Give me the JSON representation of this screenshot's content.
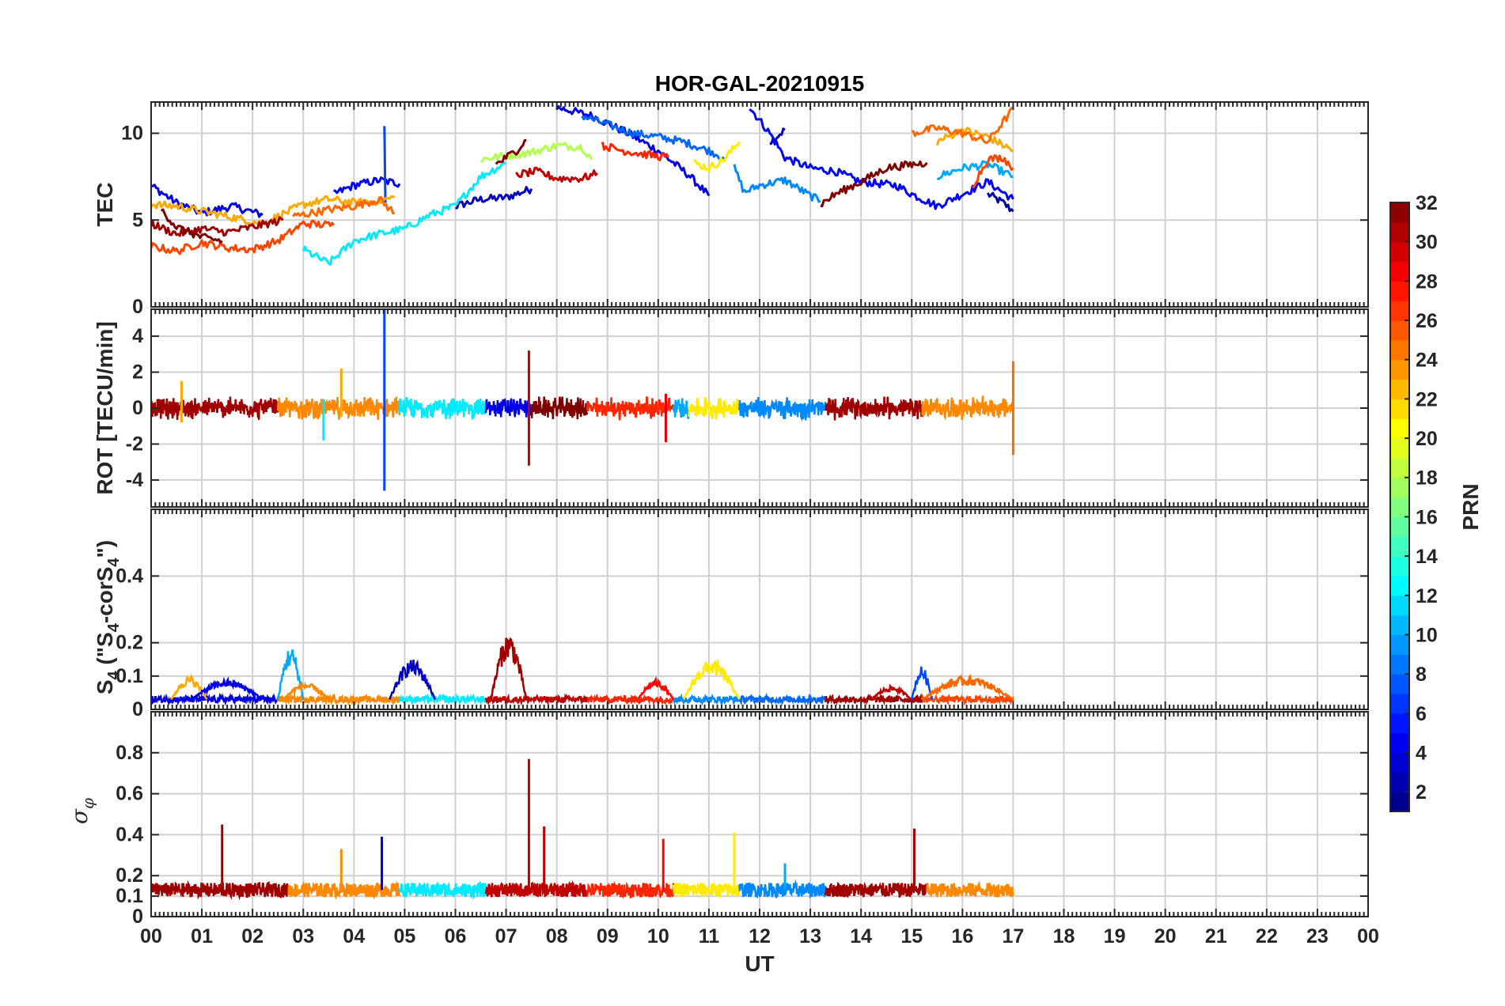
{
  "chart_data": {
    "type": "line",
    "title": "HOR-GAL-20210915",
    "xlabel": "UT",
    "x_ticks": [
      "00",
      "01",
      "02",
      "03",
      "04",
      "05",
      "06",
      "07",
      "08",
      "09",
      "10",
      "11",
      "12",
      "13",
      "14",
      "15",
      "16",
      "17",
      "18",
      "19",
      "20",
      "21",
      "22",
      "23",
      "00"
    ],
    "x_range_hours": [
      0,
      24
    ],
    "data_end_hour": 17,
    "colorbar": {
      "label": "PRN",
      "range": [
        1,
        32
      ],
      "ticks": [
        "2",
        "4",
        "6",
        "8",
        "10",
        "12",
        "14",
        "16",
        "18",
        "20",
        "22",
        "24",
        "26",
        "28",
        "30",
        "32"
      ],
      "colormap": "jet"
    },
    "panels": [
      {
        "name": "TEC",
        "ylabel": "TEC",
        "ylim": [
          0,
          11.8
        ],
        "yticks": [
          0,
          5,
          10
        ],
        "ytick_labels": [
          "0",
          "5",
          "10"
        ],
        "series": [
          {
            "prn": 2,
            "points": [
              [
                16.5,
                6.5
              ],
              [
                16.8,
                6.0
              ],
              [
                17,
                5.5
              ]
            ]
          },
          {
            "prn": 3,
            "points": [
              [
                6.0,
                5.8
              ],
              [
                6.5,
                6.2
              ],
              [
                7.0,
                6.3
              ],
              [
                7.5,
                6.8
              ]
            ]
          },
          {
            "prn": 3,
            "points": [
              [
                12.2,
                9.5
              ],
              [
                12.5,
                10.2
              ]
            ]
          },
          {
            "prn": 4,
            "points": [
              [
                0,
                7.0
              ],
              [
                0.5,
                6.0
              ],
              [
                1.0,
                5.4
              ],
              [
                1.6,
                5.8
              ],
              [
                2.2,
                5.3
              ]
            ]
          },
          {
            "prn": 4,
            "points": [
              [
                8.0,
                11.5
              ],
              [
                8.7,
                11.0
              ],
              [
                9.4,
                10.0
              ],
              [
                10.0,
                9.0
              ],
              [
                10.6,
                7.6
              ],
              [
                11.0,
                6.4
              ]
            ]
          },
          {
            "prn": 5,
            "points": [
              [
                3.6,
                6.5
              ],
              [
                4.0,
                7.0
              ],
              [
                4.5,
                7.3
              ],
              [
                4.9,
                7.1
              ]
            ]
          },
          {
            "prn": 5,
            "points": [
              [
                11.8,
                11.5
              ],
              [
                12.2,
                10.0
              ],
              [
                12.5,
                8.6
              ],
              [
                13.0,
                8.0
              ],
              [
                13.5,
                7.8
              ],
              [
                14.0,
                7.2
              ],
              [
                14.7,
                7.0
              ],
              [
                15.0,
                6.5
              ],
              [
                15.5,
                5.8
              ],
              [
                16.0,
                6.5
              ],
              [
                16.5,
                7.2
              ],
              [
                17,
                6.2
              ]
            ]
          },
          {
            "prn": 7,
            "points": [
              [
                4.6,
                10.3
              ],
              [
                4.62,
                6.0
              ]
            ]
          },
          {
            "prn": 8,
            "points": [
              [
                8.5,
                11.0
              ],
              [
                9.0,
                10.5
              ],
              [
                9.5,
                10.0
              ],
              [
                10.0,
                9.8
              ],
              [
                10.5,
                9.5
              ],
              [
                11.0,
                9.0
              ],
              [
                11.3,
                8.6
              ]
            ]
          },
          {
            "prn": 9,
            "points": [
              [
                11.5,
                8.0
              ],
              [
                11.7,
                6.6
              ],
              [
                12.0,
                7.0
              ],
              [
                12.5,
                7.3
              ],
              [
                13.0,
                6.4
              ],
              [
                13.2,
                6.1
              ]
            ]
          },
          {
            "prn": 10,
            "points": [
              [
                15.5,
                7.5
              ],
              [
                16.0,
                8.0
              ],
              [
                16.5,
                8.2
              ],
              [
                17,
                7.5
              ]
            ]
          },
          {
            "prn": 12,
            "points": [
              [
                3.0,
                3.3
              ],
              [
                3.5,
                2.5
              ],
              [
                4.0,
                3.8
              ],
              [
                4.5,
                4.2
              ],
              [
                5.0,
                4.5
              ],
              [
                5.5,
                5.3
              ],
              [
                6.0,
                5.8
              ],
              [
                6.5,
                7.5
              ],
              [
                7.0,
                8.3
              ]
            ]
          },
          {
            "prn": 18,
            "points": [
              [
                6.5,
                8.5
              ],
              [
                7.0,
                8.7
              ],
              [
                7.5,
                8.9
              ],
              [
                8.0,
                9.3
              ],
              [
                8.5,
                9.2
              ],
              [
                8.7,
                8.5
              ]
            ]
          },
          {
            "prn": 21,
            "points": [
              [
                10.7,
                8.3
              ],
              [
                11.0,
                8.0
              ],
              [
                11.3,
                8.5
              ],
              [
                11.6,
                9.5
              ]
            ]
          },
          {
            "prn": 23,
            "points": [
              [
                0,
                5.9
              ],
              [
                0.5,
                5.8
              ],
              [
                1.2,
                5.4
              ],
              [
                2.2,
                4.8
              ],
              [
                3.0,
                5.9
              ],
              [
                3.5,
                6.2
              ],
              [
                4.0,
                6.0
              ],
              [
                4.5,
                6.1
              ],
              [
                4.8,
                6.3
              ]
            ]
          },
          {
            "prn": 23,
            "points": [
              [
                15.5,
                9.5
              ],
              [
                16.0,
                10.2
              ],
              [
                16.5,
                9.8
              ],
              [
                17,
                9.0
              ]
            ]
          },
          {
            "prn": 25,
            "points": [
              [
                2.8,
                5.2
              ],
              [
                3.5,
                5.6
              ],
              [
                4.0,
                5.8
              ],
              [
                4.5,
                6.2
              ],
              [
                4.8,
                5.4
              ]
            ]
          },
          {
            "prn": 25,
            "points": [
              [
                15.0,
                10.0
              ],
              [
                15.5,
                10.3
              ],
              [
                16.0,
                10.0
              ],
              [
                16.5,
                9.5
              ],
              [
                17,
                11.4
              ]
            ]
          },
          {
            "prn": 26,
            "points": [
              [
                0,
                3.5
              ],
              [
                0.5,
                3.2
              ],
              [
                1.0,
                3.7
              ],
              [
                1.5,
                3.4
              ],
              [
                2.0,
                3.3
              ],
              [
                2.5,
                3.8
              ],
              [
                3.0,
                4.8
              ],
              [
                3.6,
                4.7
              ]
            ]
          },
          {
            "prn": 26,
            "points": [
              [
                16.2,
                7.0
              ],
              [
                16.5,
                8.5
              ],
              [
                16.8,
                8.6
              ],
              [
                17,
                8.0
              ]
            ]
          },
          {
            "prn": 27,
            "points": [
              [
                8.9,
                9.3
              ],
              [
                9.3,
                9.0
              ],
              [
                9.7,
                8.8
              ],
              [
                10.2,
                8.6
              ]
            ]
          },
          {
            "prn": 30,
            "points": [
              [
                7.2,
                7.6
              ],
              [
                7.6,
                7.8
              ],
              [
                8.0,
                7.4
              ],
              [
                8.5,
                7.4
              ],
              [
                8.8,
                7.7
              ]
            ]
          },
          {
            "prn": 31,
            "points": [
              [
                0,
                4.8
              ],
              [
                0.5,
                4.2
              ],
              [
                1.0,
                4.5
              ],
              [
                1.5,
                4.3
              ],
              [
                2.0,
                4.6
              ],
              [
                2.6,
                5.0
              ]
            ]
          },
          {
            "prn": 32,
            "points": [
              [
                0.2,
                5.6
              ],
              [
                0.5,
                4.6
              ],
              [
                1.0,
                4.0
              ],
              [
                1.4,
                3.8
              ]
            ]
          },
          {
            "prn": 32,
            "points": [
              [
                6.8,
                8.2
              ],
              [
                7.2,
                9.0
              ],
              [
                7.4,
                9.6
              ]
            ]
          },
          {
            "prn": 32,
            "points": [
              [
                13.2,
                5.9
              ],
              [
                13.5,
                6.5
              ],
              [
                14.0,
                7.2
              ],
              [
                14.5,
                8.0
              ],
              [
                15.0,
                8.2
              ],
              [
                15.3,
                8.3
              ]
            ]
          }
        ]
      },
      {
        "name": "ROT",
        "ylabel": "ROT [TECU/min]",
        "ylim": [
          -5.5,
          5.5
        ],
        "yticks": [
          -4,
          -2,
          0,
          2,
          4
        ],
        "ytick_labels": [
          "-4",
          "-2",
          "0",
          "2",
          "4"
        ],
        "noise_band": 0.5,
        "spikes": [
          {
            "t": 4.6,
            "lo": -4.6,
            "hi": 5.5,
            "prn": 7
          },
          {
            "t": 7.45,
            "lo": -3.2,
            "hi": 3.2,
            "prn": 30
          },
          {
            "t": 10.15,
            "lo": -1.9,
            "hi": 0.8,
            "prn": 29
          },
          {
            "t": 17.0,
            "lo": -2.6,
            "hi": 2.6,
            "prn": 25
          },
          {
            "t": 3.75,
            "lo": -0.5,
            "hi": 2.2,
            "prn": 23
          },
          {
            "t": 3.4,
            "lo": -1.8,
            "hi": 0.5,
            "prn": 12
          },
          {
            "t": 0.6,
            "lo": -0.8,
            "hi": 1.5,
            "prn": 23
          }
        ],
        "segments": [
          {
            "t0": 0,
            "t1": 2.5,
            "prn": 31
          },
          {
            "t0": 2.5,
            "t1": 4.9,
            "prn": 24
          },
          {
            "t0": 4.9,
            "t1": 6.6,
            "prn": 12
          },
          {
            "t0": 6.6,
            "t1": 7.5,
            "prn": 4
          },
          {
            "t0": 7.5,
            "t1": 8.6,
            "prn": 32
          },
          {
            "t0": 8.6,
            "t1": 10.3,
            "prn": 27
          },
          {
            "t0": 10.3,
            "t1": 10.6,
            "prn": 10
          },
          {
            "t0": 10.6,
            "t1": 11.6,
            "prn": 21
          },
          {
            "t0": 11.6,
            "t1": 13.3,
            "prn": 9
          },
          {
            "t0": 13.3,
            "t1": 15.2,
            "prn": 31
          },
          {
            "t0": 15.2,
            "t1": 17.0,
            "prn": 24
          }
        ]
      },
      {
        "name": "S4",
        "ylabel": "S4 (\"S4-corS4\")",
        "ylabel_parts": [
          "S",
          "4",
          " (\"S",
          "4",
          "-corS",
          "4",
          "\")"
        ],
        "ylim": [
          0,
          0.6
        ],
        "yticks": [
          0,
          0.1,
          0.2,
          0.4
        ],
        "ytick_labels": [
          "0",
          "0.1",
          "0.2",
          "0.4"
        ],
        "baseline": 0.03,
        "bumps": [
          {
            "t0": 0.4,
            "t1": 1.1,
            "peak": 0.1,
            "prn": 23
          },
          {
            "t0": 0.8,
            "t1": 2.2,
            "peak": 0.09,
            "prn": 4
          },
          {
            "t0": 2.5,
            "t1": 3.0,
            "peak": 0.19,
            "prn": 10
          },
          {
            "t0": 2.6,
            "t1": 3.5,
            "peak": 0.08,
            "prn": 24
          },
          {
            "t0": 4.7,
            "t1": 5.6,
            "peak": 0.15,
            "prn": 3
          },
          {
            "t0": 6.7,
            "t1": 7.4,
            "peak": 0.23,
            "prn": 31
          },
          {
            "t0": 9.6,
            "t1": 10.3,
            "peak": 0.09,
            "prn": 28
          },
          {
            "t0": 10.5,
            "t1": 11.6,
            "peak": 0.15,
            "prn": 21
          },
          {
            "t0": 14.2,
            "t1": 15.0,
            "peak": 0.07,
            "prn": 30
          },
          {
            "t0": 15.0,
            "t1": 15.4,
            "peak": 0.13,
            "prn": 7
          },
          {
            "t0": 15.2,
            "t1": 17.0,
            "peak": 0.1,
            "prn": 25
          }
        ]
      },
      {
        "name": "sigma_phi",
        "ylabel": "σφ",
        "ylabel_parts": [
          "σ",
          "φ"
        ],
        "ylim": [
          0,
          1.0
        ],
        "yticks": [
          0,
          0.1,
          0.2,
          0.4,
          0.6,
          0.8
        ],
        "ytick_labels": [
          "0",
          "0.1",
          "0.2",
          "0.4",
          "0.6",
          "0.8"
        ],
        "baseline": 0.13,
        "spikes": [
          {
            "t": 1.4,
            "hi": 0.45,
            "prn": 31
          },
          {
            "t": 3.75,
            "hi": 0.33,
            "prn": 24
          },
          {
            "t": 4.55,
            "hi": 0.39,
            "prn": 4
          },
          {
            "t": 7.45,
            "hi": 0.77,
            "prn": 30
          },
          {
            "t": 7.75,
            "hi": 0.44,
            "prn": 30
          },
          {
            "t": 10.1,
            "hi": 0.38,
            "prn": 28
          },
          {
            "t": 11.5,
            "hi": 0.41,
            "prn": 21
          },
          {
            "t": 12.5,
            "hi": 0.26,
            "prn": 10
          },
          {
            "t": 15.05,
            "hi": 0.43,
            "prn": 31
          }
        ],
        "segments": [
          {
            "t0": 0,
            "t1": 2.7,
            "prn": 31
          },
          {
            "t0": 2.7,
            "t1": 4.9,
            "prn": 24
          },
          {
            "t0": 4.9,
            "t1": 6.6,
            "prn": 12
          },
          {
            "t0": 6.6,
            "t1": 8.6,
            "prn": 30
          },
          {
            "t0": 8.6,
            "t1": 10.3,
            "prn": 27
          },
          {
            "t0": 10.3,
            "t1": 11.6,
            "prn": 21
          },
          {
            "t0": 11.6,
            "t1": 13.3,
            "prn": 9
          },
          {
            "t0": 13.3,
            "t1": 15.3,
            "prn": 31
          },
          {
            "t0": 15.3,
            "t1": 17.0,
            "prn": 24
          }
        ]
      }
    ]
  }
}
